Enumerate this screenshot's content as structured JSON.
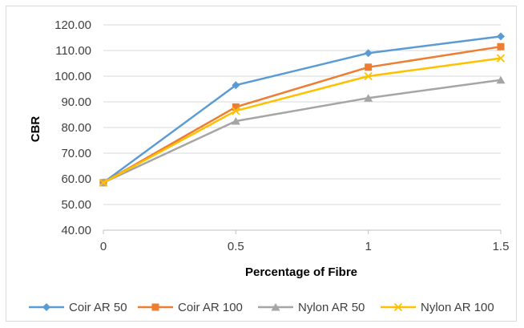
{
  "chart_data": {
    "type": "line",
    "title": "",
    "xlabel": "Percentage of Fibre",
    "ylabel": "CBR",
    "x": [
      0,
      0.5,
      1,
      1.5
    ],
    "x_tick_labels": [
      "0",
      "0.5",
      "1",
      "1.5"
    ],
    "y_tick_labels": [
      "40.00",
      "50.00",
      "60.00",
      "70.00",
      "80.00",
      "90.00",
      "100.00",
      "110.00",
      "120.00"
    ],
    "ylim": [
      40,
      120
    ],
    "grid": "horizontal",
    "legend_position": "bottom",
    "series": [
      {
        "name": "Coir AR 50",
        "values": [
          58.5,
          96.5,
          109.0,
          115.5
        ],
        "color": "#5b9bd5",
        "marker": "diamond"
      },
      {
        "name": "Coir AR 100",
        "values": [
          58.5,
          88.0,
          103.5,
          111.5
        ],
        "color": "#ed7d31",
        "marker": "square"
      },
      {
        "name": "Nylon AR 50",
        "values": [
          58.5,
          82.5,
          91.5,
          98.5
        ],
        "color": "#a5a5a5",
        "marker": "triangle"
      },
      {
        "name": "Nylon AR 100",
        "values": [
          58.5,
          86.5,
          100.0,
          107.0
        ],
        "color": "#ffc000",
        "marker": "x"
      }
    ]
  }
}
